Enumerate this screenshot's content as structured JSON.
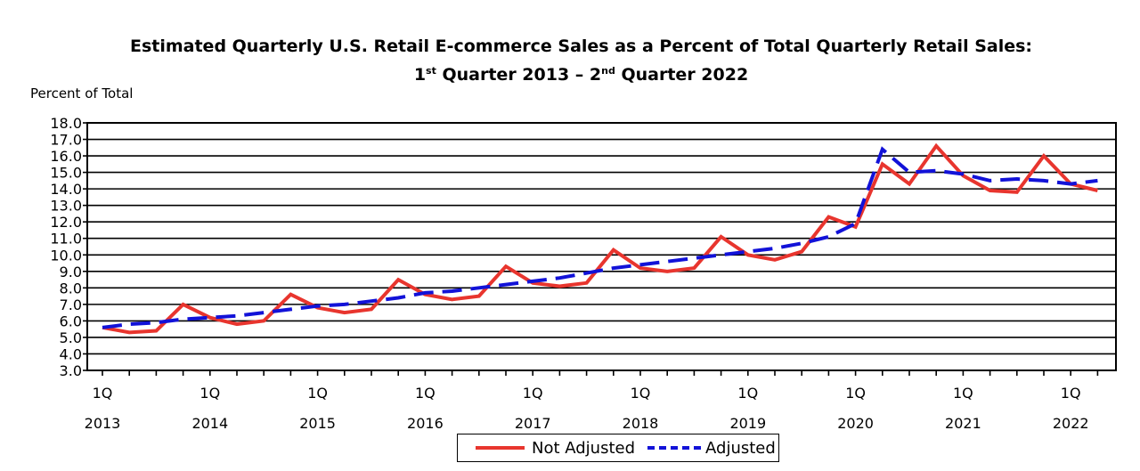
{
  "title": {
    "line1": "Estimated Quarterly U.S. Retail E-commerce Sales as a Percent of Total Quarterly Retail Sales:",
    "line2_q1_num": "1",
    "line2_q1_sup": "st",
    "line2_mid": " Quarter 2013 – 2",
    "line2_q2_sup": "nd",
    "line2_end": " Quarter 2022"
  },
  "chart_data": {
    "type": "line",
    "title": "Estimated Quarterly U.S. Retail E-commerce Sales as a Percent of Total Quarterly Retail Sales: 1st Quarter 2013 – 2nd Quarter 2022",
    "ylabel": "Percent of Total",
    "xlabel": "",
    "ylim": [
      3.0,
      18.0
    ],
    "yticks": [
      "18.0",
      "17.0",
      "16.0",
      "15.0",
      "14.0",
      "13.0",
      "12.0",
      "11.0",
      "10.0",
      "9.0",
      "8.0",
      "7.0",
      "6.0",
      "5.0",
      "4.0",
      "3.0"
    ],
    "x_year_labels": [
      {
        "q": "1Q",
        "year": "2013"
      },
      {
        "q": "1Q",
        "year": "2014"
      },
      {
        "q": "1Q",
        "year": "2015"
      },
      {
        "q": "1Q",
        "year": "2016"
      },
      {
        "q": "1Q",
        "year": "2017"
      },
      {
        "q": "1Q",
        "year": "2018"
      },
      {
        "q": "1Q",
        "year": "2019"
      },
      {
        "q": "1Q",
        "year": "2020"
      },
      {
        "q": "1Q",
        "year": "2021"
      },
      {
        "q": "1Q",
        "year": "2022"
      }
    ],
    "x_start": "2013Q1",
    "x_end": "2022Q2",
    "grid": "horizontal",
    "legend_position": "bottom-center",
    "series": [
      {
        "name": "Not Adjusted",
        "color": "#e8352e",
        "style": "solid",
        "values": [
          5.6,
          5.3,
          5.4,
          7.0,
          6.2,
          5.8,
          6.0,
          7.6,
          6.8,
          6.5,
          6.7,
          8.5,
          7.6,
          7.3,
          7.5,
          9.3,
          8.3,
          8.1,
          8.3,
          10.3,
          9.2,
          9.0,
          9.2,
          11.1,
          10.0,
          9.7,
          10.2,
          12.3,
          11.7,
          15.5,
          14.3,
          16.6,
          14.8,
          13.9,
          13.8,
          16.0,
          14.3,
          13.9
        ]
      },
      {
        "name": "Adjusted",
        "color": "#1212d8",
        "style": "dashed",
        "values": [
          5.6,
          5.8,
          5.9,
          6.1,
          6.2,
          6.3,
          6.5,
          6.7,
          6.9,
          7.0,
          7.2,
          7.4,
          7.7,
          7.8,
          8.0,
          8.2,
          8.4,
          8.6,
          8.9,
          9.2,
          9.4,
          9.6,
          9.8,
          10.0,
          10.2,
          10.4,
          10.7,
          11.1,
          11.9,
          16.4,
          15.0,
          15.1,
          14.9,
          14.5,
          14.6,
          14.5,
          14.3,
          14.5
        ]
      }
    ]
  },
  "legend": {
    "not_adjusted_label": "Not Adjusted",
    "adjusted_label": "Adjusted"
  }
}
